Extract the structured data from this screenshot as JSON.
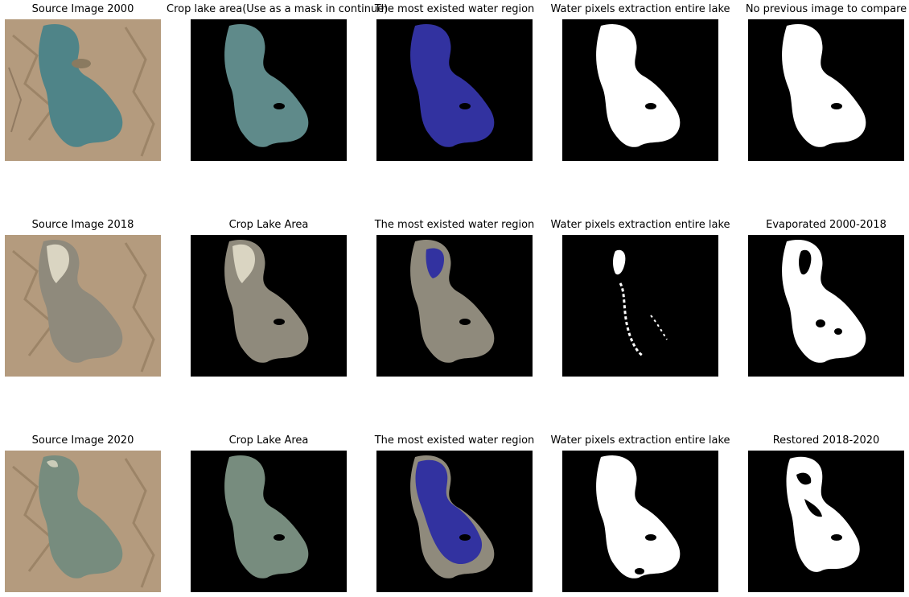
{
  "colors": {
    "background": "#000000",
    "satellite_land": "#b49b7e",
    "lake_water_2000": "#4f8488",
    "lake_salt_2018": "#8f8a7c",
    "lake_water_2020": "#778c7e",
    "region_overlay": "#3232a0",
    "mask_white": "#ffffff"
  },
  "rows": [
    {
      "year": "2000",
      "panels": [
        {
          "title": "Source Image 2000",
          "kind": "source"
        },
        {
          "title": "Crop lake area(Use as a mask in continue)",
          "kind": "crop"
        },
        {
          "title": "The most existed water region",
          "kind": "region"
        },
        {
          "title": "Water pixels extraction entire lake",
          "kind": "water"
        },
        {
          "title": "No previous image to compare",
          "kind": "diff"
        }
      ]
    },
    {
      "year": "2018",
      "panels": [
        {
          "title": "Source Image 2018",
          "kind": "source"
        },
        {
          "title": "Crop Lake Area",
          "kind": "crop"
        },
        {
          "title": "The most existed water region",
          "kind": "region"
        },
        {
          "title": "Water pixels extraction entire lake",
          "kind": "water"
        },
        {
          "title": "Evaporated 2000-2018",
          "kind": "diff"
        }
      ]
    },
    {
      "year": "2020",
      "panels": [
        {
          "title": "Source Image 2020",
          "kind": "source"
        },
        {
          "title": "Crop Lake Area",
          "kind": "crop"
        },
        {
          "title": "The most existed water region",
          "kind": "region"
        },
        {
          "title": "Water pixels extraction entire lake",
          "kind": "water"
        },
        {
          "title": "Restored 2018-2020",
          "kind": "diff"
        }
      ]
    }
  ]
}
